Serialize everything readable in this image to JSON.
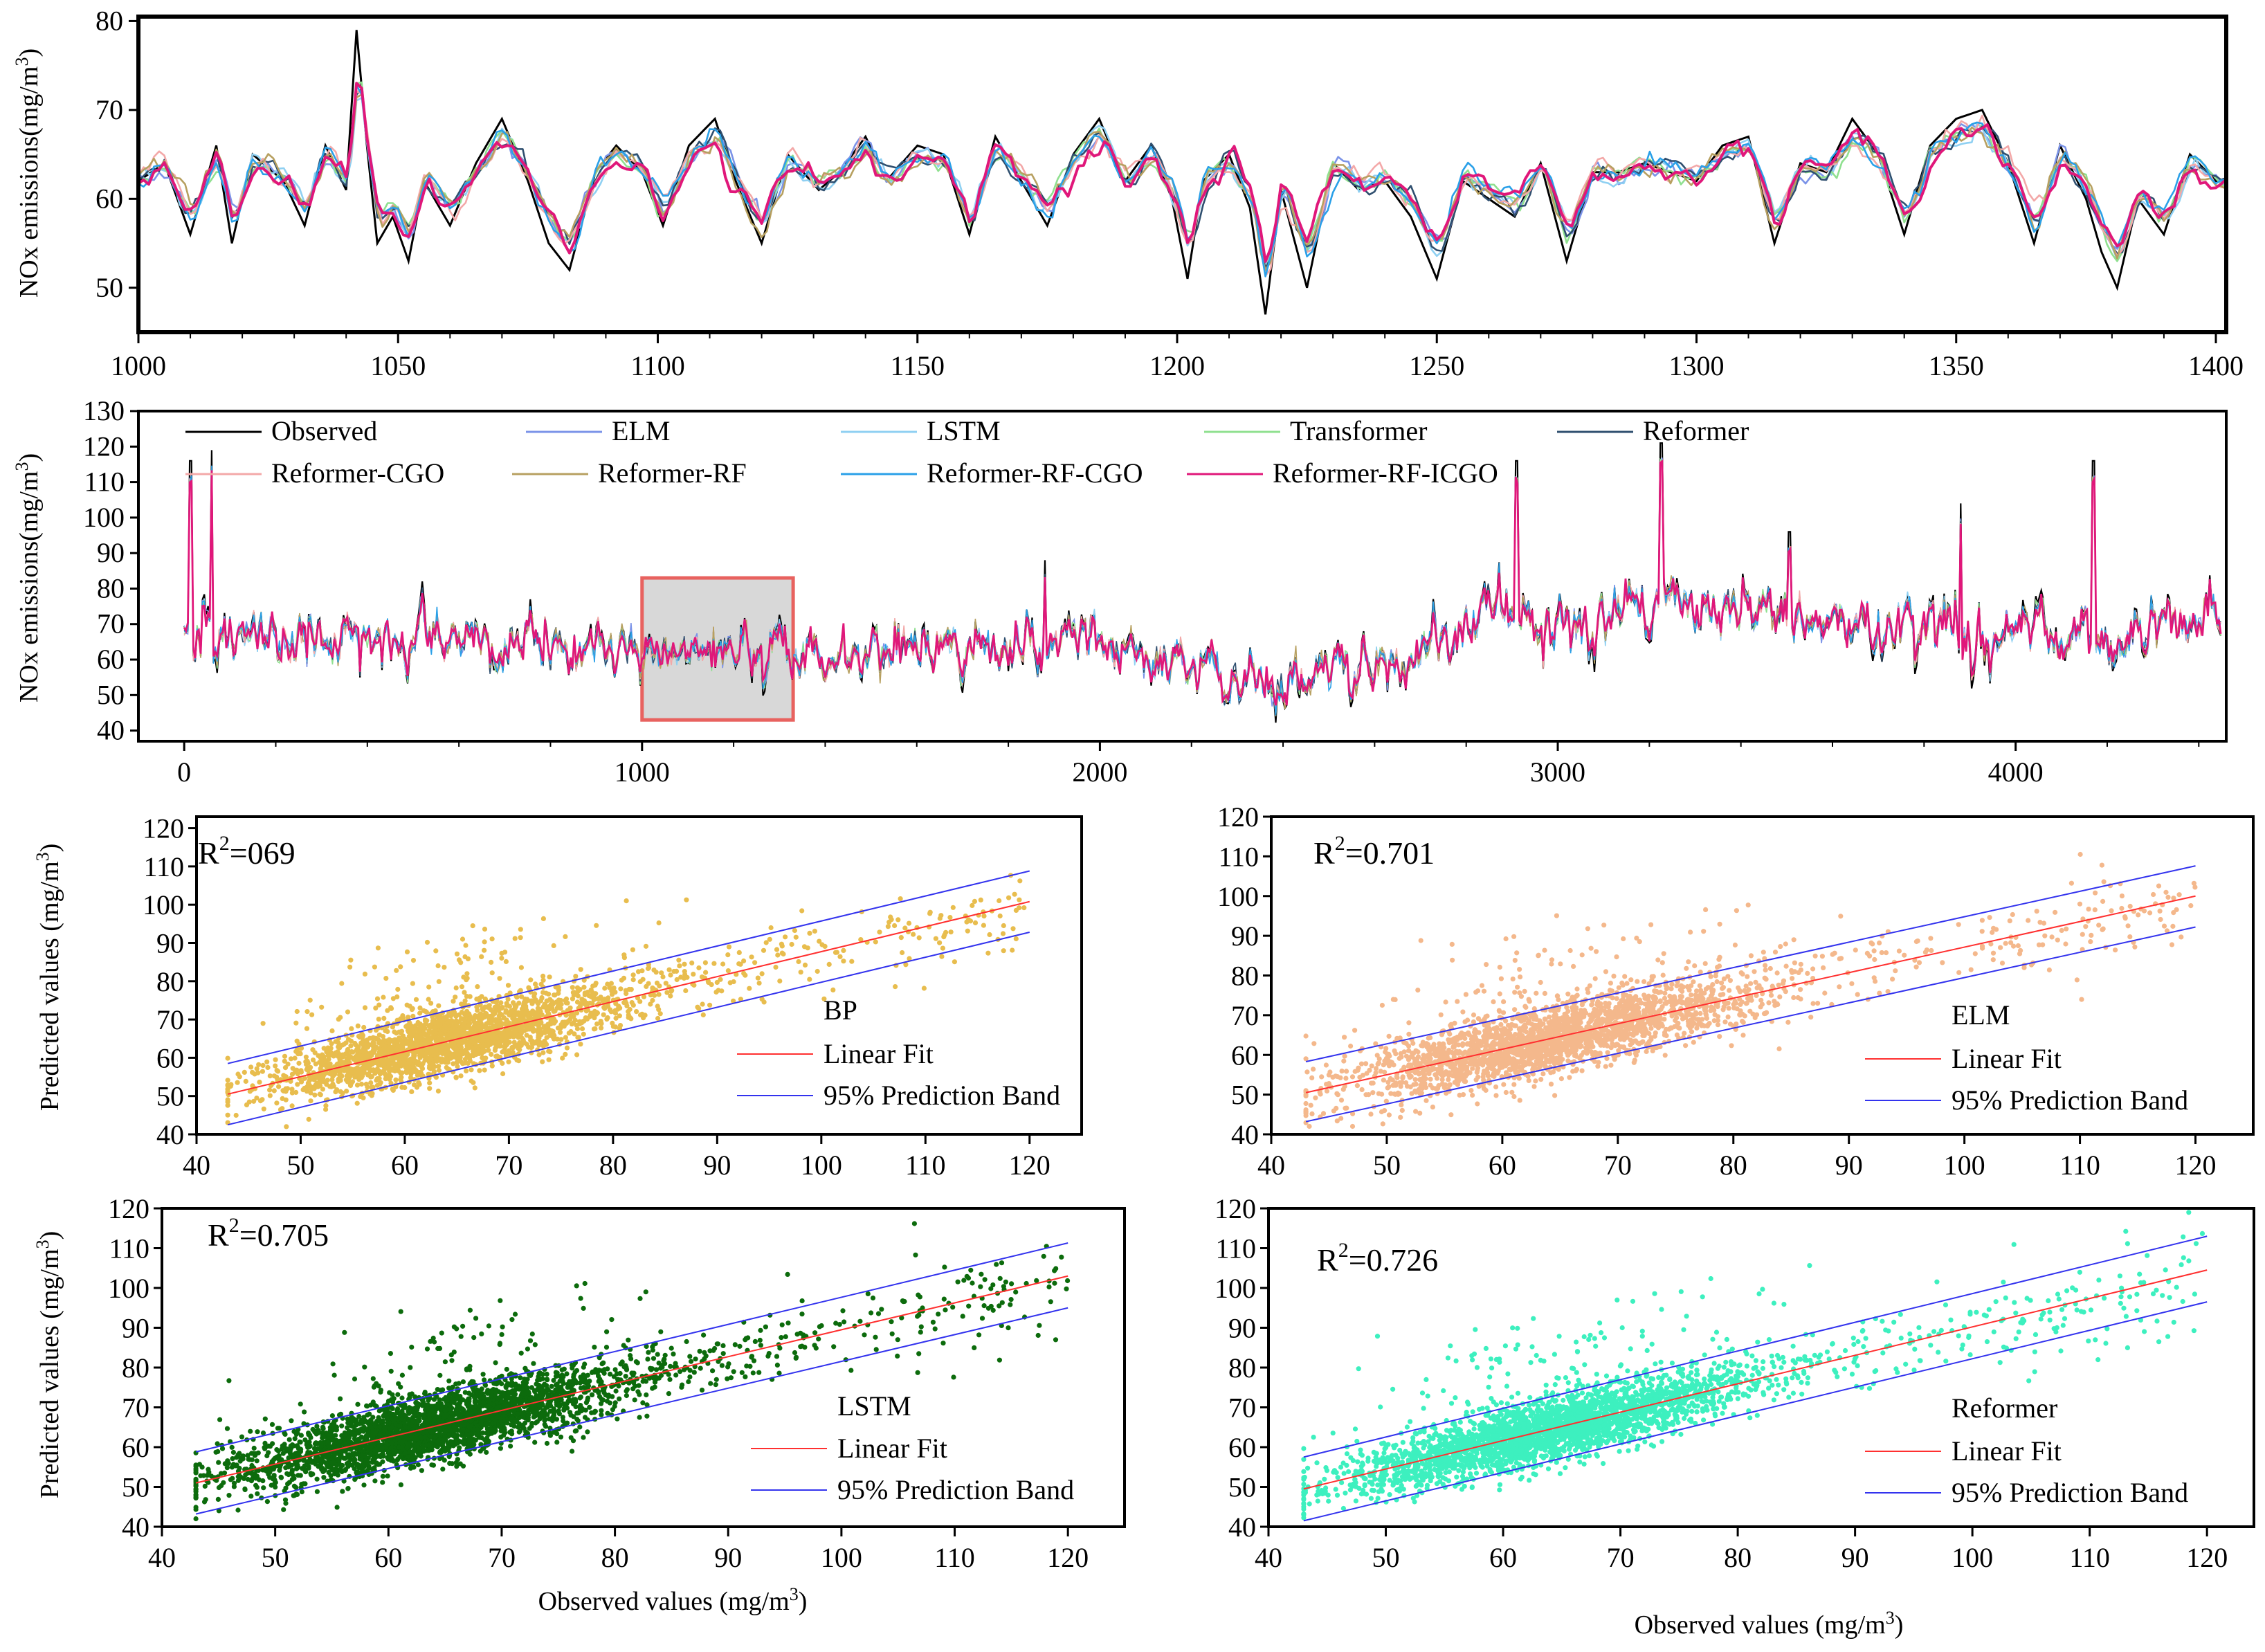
{
  "figure": {
    "line_series_colors": {
      "Observed": "#000000",
      "ELM": "#7b93e8",
      "LSTM": "#8fd0f2",
      "Transformer": "#8fe08f",
      "Reformer": "#2f4f6f",
      "Reformer-CGO": "#f3a8a8",
      "Reformer-RF": "#b7a060",
      "Reformer-RF-CGO": "#2aa0e8",
      "Reformer-RF-ICGO": "#e0177a"
    },
    "highlight_box_color": "#e8625f",
    "highlight_box_fill": "#d8d8d8"
  },
  "chart_data": [
    {
      "id": "zoom_timeseries",
      "type": "line",
      "ylabel": "NOx emissions(mg/m3)",
      "xlim": [
        1000,
        1402
      ],
      "ylim": [
        45,
        80.5
      ],
      "x_ticks": [
        "1000",
        "1050",
        "1100",
        "1150",
        "1200",
        "1250",
        "1300",
        "1350",
        "1400"
      ],
      "y_ticks": [
        "50",
        "60",
        "70",
        "80"
      ],
      "observed_keypoints": {
        "x": [
          1000,
          1005,
          1010,
          1015,
          1018,
          1022,
          1028,
          1032,
          1036,
          1040,
          1042,
          1044,
          1046,
          1049,
          1052,
          1055,
          1060,
          1065,
          1070,
          1075,
          1079,
          1083,
          1088,
          1092,
          1097,
          1101,
          1106,
          1111,
          1115,
          1120,
          1125,
          1131,
          1135,
          1140,
          1144,
          1150,
          1155,
          1160,
          1165,
          1170,
          1175,
          1180,
          1185,
          1190,
          1195,
          1199,
          1202,
          1205,
          1210,
          1214,
          1217,
          1220,
          1225,
          1230,
          1235,
          1240,
          1245,
          1250,
          1255,
          1260,
          1265,
          1270,
          1275,
          1280,
          1285,
          1290,
          1295,
          1300,
          1305,
          1310,
          1315,
          1320,
          1325,
          1330,
          1335,
          1340,
          1345,
          1350,
          1355,
          1360,
          1365,
          1370,
          1375,
          1378,
          1381,
          1385,
          1390,
          1395,
          1400
        ],
        "y": [
          62,
          64,
          56,
          66,
          55,
          65,
          62,
          57,
          66,
          61,
          79,
          66,
          55,
          58,
          53,
          62,
          57,
          64,
          69,
          62,
          55,
          52,
          63,
          66,
          63,
          57,
          66,
          69,
          62,
          55,
          65,
          61,
          63,
          67,
          62,
          66,
          65,
          56,
          67,
          62,
          57,
          65,
          69,
          62,
          66,
          60,
          51,
          62,
          65,
          59,
          47,
          61,
          50,
          64,
          61,
          62,
          58,
          51,
          62,
          60,
          58,
          64,
          53,
          63,
          63,
          64,
          63,
          62,
          66,
          67,
          55,
          64,
          63,
          69,
          65,
          56,
          66,
          69,
          70,
          64,
          55,
          66,
          60,
          54,
          50,
          60,
          56,
          65,
          62
        ]
      }
    },
    {
      "id": "full_timeseries",
      "type": "line",
      "ylabel": "NOx emissions(mg/m3)",
      "xlim": [
        -100,
        4460
      ],
      "ylim": [
        37,
        130
      ],
      "x_ticks": [
        "0",
        "1000",
        "2000",
        "3000",
        "4000"
      ],
      "y_ticks": [
        "40",
        "50",
        "60",
        "70",
        "80",
        "90",
        "100",
        "110",
        "120",
        "130"
      ],
      "highlight_region": {
        "x": [
          1000,
          1330
        ],
        "y": [
          43,
          83
        ]
      },
      "series": [
        {
          "name": "Observed"
        },
        {
          "name": "ELM"
        },
        {
          "name": "LSTM"
        },
        {
          "name": "Transformer"
        },
        {
          "name": "Reformer"
        },
        {
          "name": "Reformer-CGO"
        },
        {
          "name": "Reformer-RF"
        },
        {
          "name": "Reformer-RF-CGO"
        },
        {
          "name": "Reformer-RF-ICGO"
        }
      ],
      "level_keypoints": {
        "x": [
          0,
          100,
          300,
          600,
          900,
          1100,
          1400,
          1700,
          1900,
          2100,
          2300,
          2500,
          2700,
          2850,
          3000,
          3200,
          3400,
          3700,
          3900,
          4100,
          4300,
          4450
        ],
        "y": [
          68,
          66,
          65,
          66,
          62,
          63,
          61,
          63,
          65,
          60,
          54,
          56,
          60,
          73,
          67,
          77,
          72,
          71,
          68,
          66,
          68,
          74
        ]
      },
      "spikes_observed": [
        [
          15,
          116
        ],
        [
          60,
          119
        ],
        [
          1880,
          88
        ],
        [
          2910,
          116
        ],
        [
          3225,
          121
        ],
        [
          3505,
          96
        ],
        [
          3880,
          104
        ],
        [
          4170,
          116
        ]
      ]
    },
    {
      "id": "scatter_bp",
      "type": "scatter",
      "model": "BP",
      "r2_label": "R2=069",
      "xlabel": "",
      "ylabel": "Predicted values (mg/m3)",
      "xlim": [
        40,
        125
      ],
      "ylim": [
        40,
        123
      ],
      "x_ticks": [
        "40",
        "50",
        "60",
        "70",
        "80",
        "90",
        "100",
        "110",
        "120"
      ],
      "y_ticks": [
        "40",
        "50",
        "60",
        "70",
        "80",
        "90",
        "100",
        "110",
        "120"
      ],
      "point_color": "#e8bd4e",
      "fit_line": {
        "x": [
          43,
          120
        ],
        "y": [
          50.5,
          100.8
        ]
      },
      "band_upper": {
        "x": [
          43,
          120
        ],
        "y": [
          58.5,
          108.8
        ]
      },
      "band_lower": {
        "x": [
          43,
          120
        ],
        "y": [
          42.5,
          92.8
        ]
      },
      "legend": [
        "BP",
        "Linear Fit",
        "95% Prediction Band"
      ]
    },
    {
      "id": "scatter_elm",
      "type": "scatter",
      "model": "ELM",
      "r2_label": "R2=0.701",
      "xlabel": "",
      "ylabel": "",
      "xlim": [
        40,
        125
      ],
      "ylim": [
        40,
        120
      ],
      "x_ticks": [
        "40",
        "50",
        "60",
        "70",
        "80",
        "90",
        "100",
        "110",
        "120"
      ],
      "y_ticks": [
        "40",
        "50",
        "60",
        "70",
        "80",
        "90",
        "100",
        "110",
        "120"
      ],
      "point_color": "#f4b88c",
      "fit_line": {
        "x": [
          43,
          120
        ],
        "y": [
          50.5,
          100.0
        ]
      },
      "band_upper": {
        "x": [
          43,
          120
        ],
        "y": [
          58.3,
          107.6
        ]
      },
      "band_lower": {
        "x": [
          43,
          120
        ],
        "y": [
          43.2,
          92.2
        ]
      },
      "legend": [
        "ELM",
        "Linear Fit",
        "95% Prediction Band"
      ]
    },
    {
      "id": "scatter_lstm",
      "type": "scatter",
      "model": "LSTM",
      "r2_label": "R2=0.705",
      "xlabel": "Observed values (mg/m3)",
      "ylabel": "Predicted values (mg/m3)",
      "xlim": [
        40,
        125
      ],
      "ylim": [
        40,
        120
      ],
      "x_ticks": [
        "40",
        "50",
        "60",
        "70",
        "80",
        "90",
        "100",
        "110",
        "120"
      ],
      "y_ticks": [
        "40",
        "50",
        "60",
        "70",
        "80",
        "90",
        "100",
        "110",
        "120"
      ],
      "point_color": "#0c6b0c",
      "fit_line": {
        "x": [
          43,
          120
        ],
        "y": [
          51.0,
          103.0
        ]
      },
      "band_upper": {
        "x": [
          43,
          120
        ],
        "y": [
          58.8,
          111.3
        ]
      },
      "band_lower": {
        "x": [
          43,
          120
        ],
        "y": [
          43.2,
          95.0
        ]
      },
      "legend": [
        "LSTM",
        "Linear Fit",
        "95% Prediction Band"
      ]
    },
    {
      "id": "scatter_reformer",
      "type": "scatter",
      "model": "Reformer",
      "r2_label": "R2=0.726",
      "xlabel": "Observed values (mg/m3)",
      "ylabel": "",
      "xlim": [
        40,
        124
      ],
      "ylim": [
        40,
        120
      ],
      "x_ticks": [
        "40",
        "50",
        "60",
        "70",
        "80",
        "90",
        "100",
        "110",
        "120"
      ],
      "y_ticks": [
        "40",
        "50",
        "60",
        "70",
        "80",
        "90",
        "100",
        "110",
        "120"
      ],
      "point_color": "#3df0bf",
      "fit_line": {
        "x": [
          43,
          120
        ],
        "y": [
          49.5,
          104.5
        ]
      },
      "band_upper": {
        "x": [
          43,
          120
        ],
        "y": [
          57.5,
          113.0
        ]
      },
      "band_lower": {
        "x": [
          43,
          120
        ],
        "y": [
          41.5,
          96.5
        ]
      },
      "legend": [
        "Reformer",
        "Linear Fit",
        "95% Prediction Band"
      ]
    }
  ]
}
